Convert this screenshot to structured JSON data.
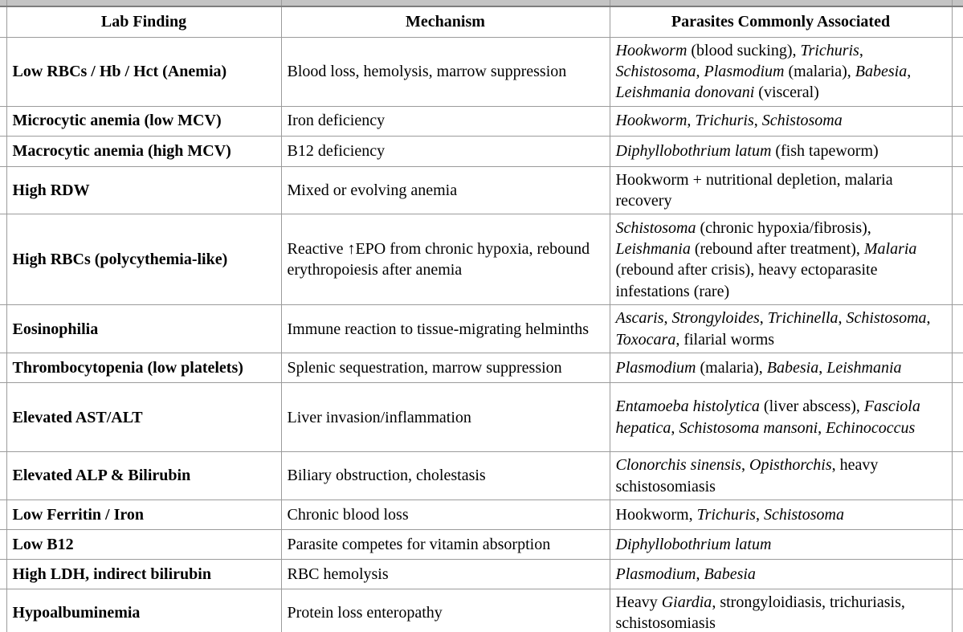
{
  "table": {
    "headers": [
      "Lab Finding",
      "Mechanism",
      "Parasites Commonly Associated"
    ],
    "rows": [
      {
        "finding": "Low RBCs / Hb / Hct (Anemia)",
        "mechanism": "Blood loss, hemolysis, marrow suppression",
        "parasites": [
          {
            "t": "Hookworm",
            "i": true
          },
          {
            "t": " (blood sucking), ",
            "i": false
          },
          {
            "t": "Trichuris",
            "i": true
          },
          {
            "t": ", ",
            "i": false
          },
          {
            "t": "Schistosoma",
            "i": true
          },
          {
            "t": ", ",
            "i": false
          },
          {
            "t": "Plasmodium",
            "i": true
          },
          {
            "t": " (malaria), ",
            "i": false
          },
          {
            "t": "Babesia",
            "i": true
          },
          {
            "t": ", ",
            "i": false
          },
          {
            "t": "Leishmania donovani",
            "i": true
          },
          {
            "t": " (visceral)",
            "i": false
          }
        ]
      },
      {
        "finding": "Microcytic anemia (low MCV)",
        "mechanism": "Iron deficiency",
        "parasites": [
          {
            "t": "Hookworm",
            "i": true
          },
          {
            "t": ", ",
            "i": false
          },
          {
            "t": "Trichuris",
            "i": true
          },
          {
            "t": ", ",
            "i": false
          },
          {
            "t": "Schistosoma",
            "i": true
          }
        ]
      },
      {
        "finding": "Macrocytic anemia (high MCV)",
        "mechanism": "B12 deficiency",
        "parasites": [
          {
            "t": "Diphyllobothrium latum",
            "i": true
          },
          {
            "t": " (fish tapeworm)",
            "i": false
          }
        ]
      },
      {
        "finding": "High RDW",
        "mechanism": "Mixed or evolving anemia",
        "parasites": [
          {
            "t": "Hookworm + nutritional depletion, malaria recovery",
            "i": false
          }
        ]
      },
      {
        "finding": "High RBCs (polycythemia-like)",
        "mechanism": "Reactive ↑EPO from chronic hypoxia, rebound erythropoiesis after anemia",
        "parasites": [
          {
            "t": "Schistosoma",
            "i": true
          },
          {
            "t": " (chronic hypoxia/fibrosis), ",
            "i": false
          },
          {
            "t": "Leishmania",
            "i": true
          },
          {
            "t": " (rebound after treatment), ",
            "i": false
          },
          {
            "t": "Malaria",
            "i": true
          },
          {
            "t": " (rebound after crisis), heavy ectoparasite infestations (rare)",
            "i": false
          }
        ]
      },
      {
        "finding": "Eosinophilia",
        "mechanism": "Immune reaction to tissue-migrating helminths",
        "parasites": [
          {
            "t": "Ascaris",
            "i": true
          },
          {
            "t": ", ",
            "i": false
          },
          {
            "t": "Strongyloides",
            "i": true
          },
          {
            "t": ", ",
            "i": false
          },
          {
            "t": "Trichinella",
            "i": true
          },
          {
            "t": ", ",
            "i": false
          },
          {
            "t": "Schistosoma",
            "i": true
          },
          {
            "t": ", ",
            "i": false
          },
          {
            "t": "Toxocara",
            "i": true
          },
          {
            "t": ", filarial worms",
            "i": false
          }
        ]
      },
      {
        "finding": "Thrombocytopenia (low platelets)",
        "mechanism": "Splenic sequestration, marrow suppression",
        "parasites": [
          {
            "t": "Plasmodium",
            "i": true
          },
          {
            "t": " (malaria), ",
            "i": false
          },
          {
            "t": "Babesia",
            "i": true
          },
          {
            "t": ", ",
            "i": false
          },
          {
            "t": "Leishmania",
            "i": true
          }
        ]
      },
      {
        "finding": "Elevated AST/ALT",
        "mechanism": "Liver invasion/inflammation",
        "parasites": [
          {
            "t": "Entamoeba histolytica",
            "i": true
          },
          {
            "t": " (liver abscess), ",
            "i": false
          },
          {
            "t": "Fasciola hepatica",
            "i": true
          },
          {
            "t": ", ",
            "i": false
          },
          {
            "t": "Schistosoma mansoni",
            "i": true
          },
          {
            "t": ", ",
            "i": false
          },
          {
            "t": "Echinococcus",
            "i": true
          }
        ]
      },
      {
        "finding": "Elevated ALP & Bilirubin",
        "mechanism": "Biliary obstruction, cholestasis",
        "parasites": [
          {
            "t": "Clonorchis sinensis",
            "i": true
          },
          {
            "t": ", ",
            "i": false
          },
          {
            "t": "Opisthorchis",
            "i": true
          },
          {
            "t": ", heavy schistosomiasis",
            "i": false
          }
        ]
      },
      {
        "finding": "Low Ferritin / Iron",
        "mechanism": "Chronic blood loss",
        "parasites": [
          {
            "t": "Hookworm, ",
            "i": false
          },
          {
            "t": "Trichuris",
            "i": true
          },
          {
            "t": ", ",
            "i": false
          },
          {
            "t": "Schistosoma",
            "i": true
          }
        ]
      },
      {
        "finding": "Low B12",
        "mechanism": "Parasite competes for vitamin absorption",
        "parasites": [
          {
            "t": "Diphyllobothrium latum",
            "i": true
          }
        ]
      },
      {
        "finding": "High LDH, indirect bilirubin",
        "mechanism": "RBC hemolysis",
        "parasites": [
          {
            "t": "Plasmodium",
            "i": true
          },
          {
            "t": ", ",
            "i": false
          },
          {
            "t": "Babesia",
            "i": true
          }
        ]
      },
      {
        "finding": "Hypoalbuminemia",
        "mechanism": "Protein loss enteropathy",
        "parasites": [
          {
            "t": "Heavy ",
            "i": false
          },
          {
            "t": "Giardia",
            "i": true
          },
          {
            "t": ", strongyloidiasis, trichuriasis, schistosomiasis",
            "i": false
          }
        ]
      }
    ]
  },
  "colors": {
    "partial_row_fill": "#c4c4c4",
    "partial_row_edge": "#7d7d7d",
    "grid_line": "#9b9b9b",
    "text": "#000000",
    "background": "#ffffff"
  }
}
